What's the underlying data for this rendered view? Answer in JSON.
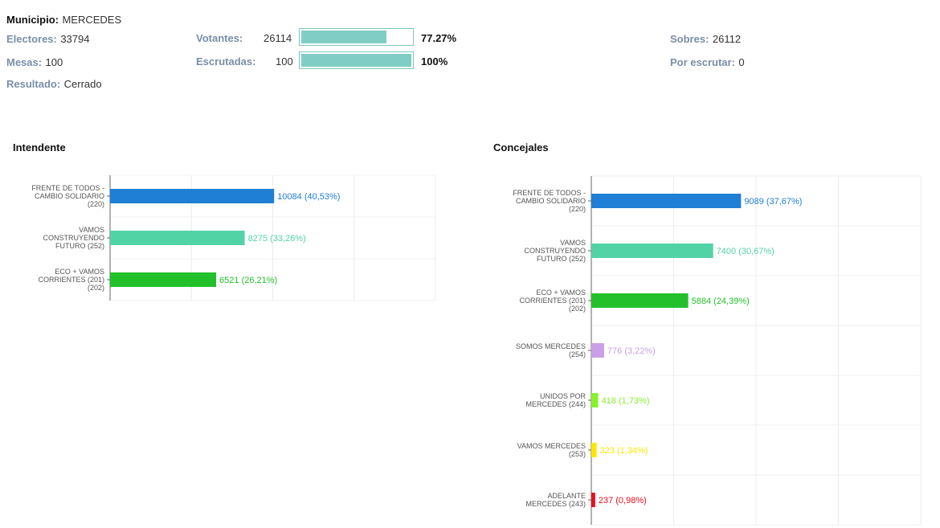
{
  "header": {
    "municipio_label": "Municipio:",
    "municipio_value": "MERCEDES",
    "electores_label": "Electores:",
    "electores_value": "33794",
    "mesas_label": "Mesas:",
    "mesas_value": "100",
    "resultado_label": "Resultado:",
    "resultado_value": "Cerrado",
    "votantes_label": "Votantes:",
    "votantes_value": "26114",
    "votantes_pct": "77.27%",
    "votantes_fraction": 0.7727,
    "escrutadas_label": "Escrutadas:",
    "escrutadas_value": "100",
    "escrutadas_pct": "100%",
    "escrutadas_fraction": 1.0,
    "sobres_label": "Sobres:",
    "sobres_value": "26112",
    "por_escrutar_label": "Por escrutar:",
    "por_escrutar_value": "0"
  },
  "chart_data": [
    {
      "type": "bar",
      "orientation": "horizontal",
      "title": "Intendente",
      "xlim": [
        0,
        20000
      ],
      "grid": true,
      "categories": [
        [
          "FRENTE DE TODOS -",
          "CAMBIO SOLIDARIO",
          "(220)"
        ],
        [
          "VAMOS",
          "CONSTRUYENDO",
          "FUTURO (252)"
        ],
        [
          "ECO + VAMOS",
          "CORRIENTES (201)",
          "(202)"
        ]
      ],
      "values": [
        10084,
        8275,
        6521
      ],
      "data_labels": [
        "10084 (40,53%)",
        "8275 (33,26%)",
        "6521 (26,21%)"
      ],
      "colors": [
        "#1f7fd4",
        "#52d3a6",
        "#22c12b"
      ]
    },
    {
      "type": "bar",
      "orientation": "horizontal",
      "title": "Concejales",
      "xlim": [
        0,
        20000
      ],
      "grid": true,
      "categories": [
        [
          "FRENTE DE TODOS -",
          "CAMBIO SOLIDARIO",
          "(220)"
        ],
        [
          "VAMOS",
          "CONSTRUYENDO",
          "FUTURO (252)"
        ],
        [
          "ECO + VAMOS",
          "CORRIENTES (201)",
          "(202)"
        ],
        [
          "SOMOS MERCEDES",
          "(254)"
        ],
        [
          "UNIDOS POR",
          "MERCEDES (244)"
        ],
        [
          "VAMOS MERCEDES",
          "(253)"
        ],
        [
          "ADELANTE",
          "MERCEDES (243)"
        ]
      ],
      "values": [
        9089,
        7400,
        5884,
        776,
        418,
        323,
        237
      ],
      "data_labels": [
        "9089 (37,67%)",
        "7400 (30,67%)",
        "5884 (24,39%)",
        "776 (3,22%)",
        "418 (1,73%)",
        "323 (1,34%)",
        "237 (0,98%)"
      ],
      "colors": [
        "#1f7fd4",
        "#52d3a6",
        "#22c12b",
        "#c9a0e8",
        "#88f22c",
        "#ffe600",
        "#e8111d"
      ]
    }
  ]
}
